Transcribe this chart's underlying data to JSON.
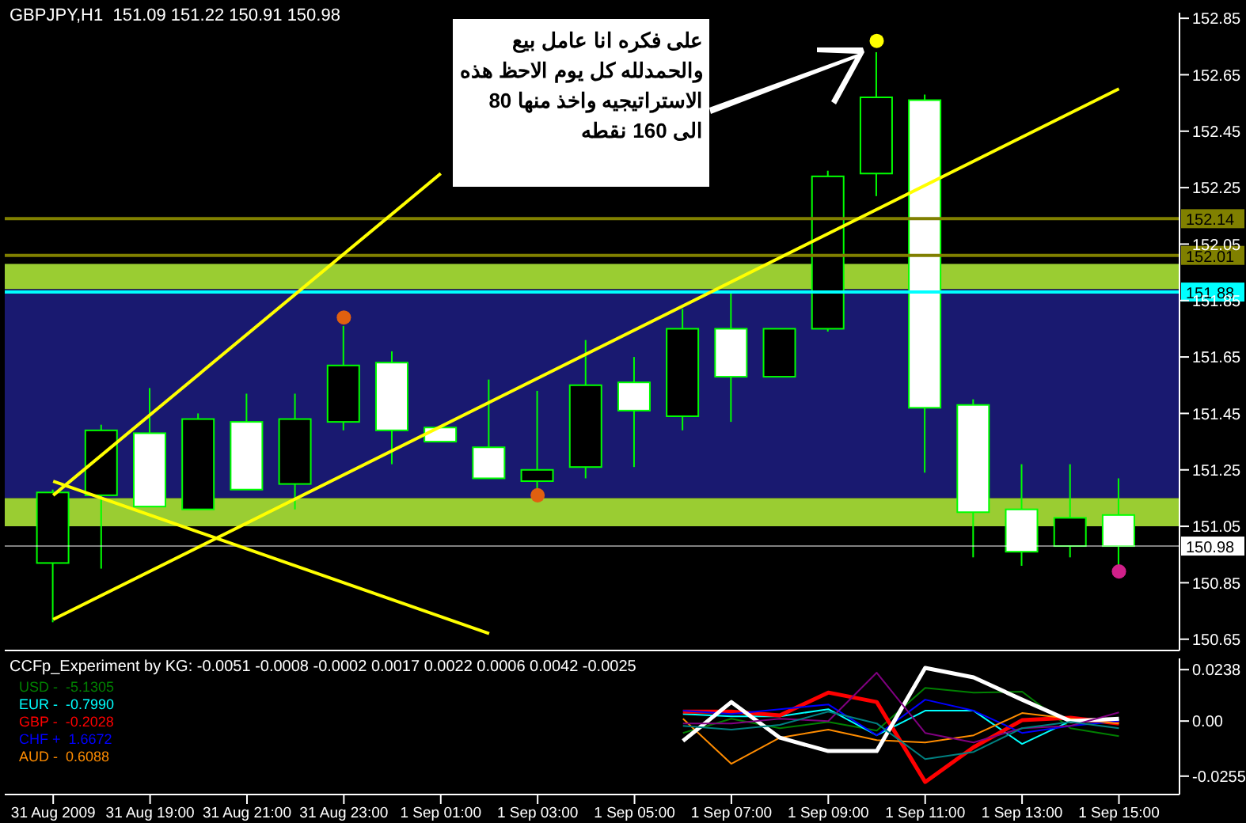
{
  "chart_data": [
    {
      "type": "candlestick",
      "title": "GBPJPY,H1  151.09 151.22 150.91 150.98",
      "x": [
        "2009-08-31T17:00",
        "2009-08-31T18:00",
        "2009-08-31T19:00",
        "2009-08-31T20:00",
        "2009-08-31T21:00",
        "2009-08-31T22:00",
        "2009-08-31T23:00",
        "2009-09-01T00:00",
        "2009-09-01T01:00",
        "2009-09-01T02:00",
        "2009-09-01T03:00",
        "2009-09-01T04:00",
        "2009-09-01T05:00",
        "2009-09-01T06:00",
        "2009-09-01T07:00",
        "2009-09-01T08:00",
        "2009-09-01T09:00",
        "2009-09-01T10:00",
        "2009-09-01T11:00",
        "2009-09-01T12:00",
        "2009-09-01T13:00",
        "2009-09-01T14:00",
        "2009-09-01T15:00"
      ],
      "ohlc": [
        [
          150.92,
          151.18,
          150.71,
          151.17
        ],
        [
          151.16,
          151.41,
          150.9,
          151.39
        ],
        [
          151.38,
          151.54,
          151.12,
          151.12
        ],
        [
          151.11,
          151.45,
          151.11,
          151.43
        ],
        [
          151.42,
          151.52,
          151.18,
          151.18
        ],
        [
          151.2,
          151.52,
          151.11,
          151.43
        ],
        [
          151.42,
          151.76,
          151.39,
          151.62
        ],
        [
          151.63,
          151.67,
          151.27,
          151.39
        ],
        [
          151.4,
          151.4,
          151.35,
          151.35
        ],
        [
          151.33,
          151.57,
          151.22,
          151.22
        ],
        [
          151.21,
          151.53,
          151.17,
          151.25
        ],
        [
          151.26,
          151.71,
          151.22,
          151.55
        ],
        [
          151.56,
          151.65,
          151.26,
          151.46
        ],
        [
          151.44,
          151.82,
          151.39,
          151.75
        ],
        [
          151.75,
          151.88,
          151.42,
          151.58
        ],
        [
          151.58,
          151.75,
          151.58,
          151.75
        ],
        [
          151.75,
          152.31,
          151.74,
          152.29
        ],
        [
          152.3,
          152.73,
          152.22,
          152.57
        ],
        [
          152.56,
          152.58,
          151.24,
          151.47
        ],
        [
          151.48,
          151.5,
          150.94,
          151.1
        ],
        [
          151.11,
          151.27,
          150.91,
          150.96
        ],
        [
          150.98,
          151.27,
          150.94,
          151.08
        ],
        [
          151.09,
          151.22,
          150.91,
          150.98
        ]
      ],
      "series": [
        {
          "type": "line",
          "color": "#ffff00",
          "marker": "none",
          "x": [
            "2009-08-31T17:00",
            "2009-09-01T01:00"
          ],
          "values": [
            151.16,
            152.3
          ]
        },
        {
          "type": "line",
          "color": "#ffff00",
          "marker": "none",
          "x": [
            "2009-08-31T17:00",
            "2009-09-01T15:00"
          ],
          "values": [
            150.72,
            152.6
          ]
        },
        {
          "type": "line",
          "color": "#ffff00",
          "marker": "none",
          "x": [
            "2009-08-31T17:00",
            "2009-09-01T02:00"
          ],
          "values": [
            151.21,
            150.67
          ]
        },
        {
          "type": "scatter",
          "color": "#e06010",
          "marker": "circle",
          "x": [
            "2009-08-31T23:00",
            "2009-09-01T03:00"
          ],
          "values": [
            151.79,
            151.16
          ]
        },
        {
          "type": "scatter",
          "color": "#ffff00",
          "marker": "circle",
          "x": [
            "2009-09-01T10:00"
          ],
          "values": [
            152.77
          ]
        },
        {
          "type": "scatter",
          "color": "#d0208a",
          "marker": "circle",
          "x": [
            "2009-09-01T15:00"
          ],
          "values": [
            150.89
          ]
        }
      ],
      "xlim": [
        "2009-08-31T16:00",
        "2009-09-01T16:15"
      ],
      "ylim": [
        150.61,
        152.87
      ],
      "yticks": [
        150.65,
        150.85,
        151.05,
        151.25,
        151.45,
        151.65,
        151.85,
        152.05,
        152.25,
        152.45,
        152.65,
        152.85
      ],
      "tick_labels": "y",
      "grid": false,
      "ref_lines": [
        {
          "axis": "y",
          "value": 152.14,
          "label": "152.14",
          "color": "#808000"
        },
        {
          "axis": "y",
          "value": 152.01,
          "label": "152.01",
          "color": "#808000"
        },
        {
          "axis": "y",
          "value": 151.88,
          "label": "151.88",
          "color": "#00ffff"
        },
        {
          "axis": "y",
          "value": 150.98,
          "label": "150.98",
          "color": "#ffffff"
        }
      ],
      "bands": [
        {
          "axis": "y",
          "from": 151.89,
          "to": 151.98,
          "color": "#9acd32"
        },
        {
          "axis": "y",
          "from": 151.15,
          "to": 151.89,
          "color": "#191970"
        },
        {
          "axis": "y",
          "from": 151.05,
          "to": 151.15,
          "color": "#9acd32"
        }
      ],
      "annotations": [
        "على فكره انا عامل بيع\nوالحمدلله كل يوم الاحظ هذه\nالاستراتيجيه واخذ منها 80\nالى 160 نقطه"
      ]
    },
    {
      "type": "line",
      "title": "CCFp_Experiment by KG: -0.0051 -0.0008 -0.0002 0.0017 0.0022 0.0006 0.0042 -0.0025",
      "x": [
        "2009-09-01T06:00",
        "2009-09-01T07:00",
        "2009-09-01T08:00",
        "2009-09-01T09:00",
        "2009-09-01T10:00",
        "2009-09-01T11:00",
        "2009-09-01T12:00",
        "2009-09-01T13:00",
        "2009-09-01T14:00",
        "2009-09-01T15:00"
      ],
      "series": [
        {
          "name": "USD -  -5.1305",
          "color": "#008000",
          "values": [
            -0.0055,
            0.0011,
            -0.0033,
            -0.0004,
            -0.0044,
            0.0154,
            0.0132,
            0.0136,
            -0.0033,
            -0.007
          ]
        },
        {
          "name": "EUR -  -0.7990",
          "color": "#00ffff",
          "values": [
            0.0033,
            0.0022,
            0.0022,
            0.0055,
            -0.0066,
            0.0048,
            0.0048,
            -0.0106,
            0,
            0.0004
          ]
        },
        {
          "name": "GBP -  -0.2028",
          "color": "#ff0000",
          "values": [
            0.0044,
            0.0044,
            0.0026,
            0.0132,
            0.0088,
            -0.0282,
            -0.0121,
            0.0004,
            0.0015,
            -0.0011
          ]
        },
        {
          "name": "CHF +  1.6672",
          "color": "#0000ff",
          "values": [
            0.0048,
            0.0033,
            0.0055,
            0.0077,
            -0.0066,
            0.0099,
            0.0048,
            -0.0055,
            -0.0022,
            0
          ]
        },
        {
          "name": "AUD -  0.6088",
          "color": "#ff8c00",
          "values": [
            0.0011,
            -0.0198,
            -0.0077,
            -0.004,
            -0.0088,
            -0.0099,
            -0.0066,
            0.0037,
            0.0011,
            -0.0011
          ]
        },
        {
          "color": "#ffffff",
          "values": [
            -0.0092,
            0.0088,
            -0.0077,
            -0.0139,
            -0.0139,
            0.0246,
            0.0202,
            0.0099,
            0,
            0.0011
          ]
        },
        {
          "color": "#800080",
          "values": [
            -0.0011,
            -0.0011,
            0.0011,
            0,
            0.0224,
            -0.0055,
            -0.0099,
            -0.0033,
            -0.0022,
            0.004
          ]
        },
        {
          "color": "#008080",
          "values": [
            -0.0022,
            -0.004,
            -0.0018,
            0.0044,
            -0.0011,
            -0.0176,
            -0.0143,
            -0.0033,
            -0.0004,
            -0.0033
          ]
        }
      ],
      "xlim": [
        "2009-08-31T16:00",
        "2009-09-01T16:15"
      ],
      "xticks": [
        {
          "value": "2009-08-31T17:00",
          "label": "31 Aug 2009"
        },
        {
          "value": "2009-08-31T19:00",
          "label": "31 Aug 19:00"
        },
        {
          "value": "2009-08-31T21:00",
          "label": "31 Aug 21:00"
        },
        {
          "value": "2009-08-31T23:00",
          "label": "31 Aug 23:00"
        },
        {
          "value": "2009-09-01T01:00",
          "label": "1 Sep 01:00"
        },
        {
          "value": "2009-09-01T03:00",
          "label": "1 Sep 03:00"
        },
        {
          "value": "2009-09-01T05:00",
          "label": "1 Sep 05:00"
        },
        {
          "value": "2009-09-01T07:00",
          "label": "1 Sep 07:00"
        },
        {
          "value": "2009-09-01T09:00",
          "label": "1 Sep 09:00"
        },
        {
          "value": "2009-09-01T11:00",
          "label": "1 Sep 11:00"
        },
        {
          "value": "2009-09-01T13:00",
          "label": "1 Sep 13:00"
        },
        {
          "value": "2009-09-01T15:00",
          "label": "1 Sep 15:00"
        }
      ],
      "ylim": [
        -0.034,
        0.029
      ],
      "yticks": [
        0.0238,
        {
          "value": 0,
          "label": "0.00"
        },
        -0.0255
      ],
      "grid": false,
      "legend": "top left",
      "marker": "none"
    }
  ]
}
